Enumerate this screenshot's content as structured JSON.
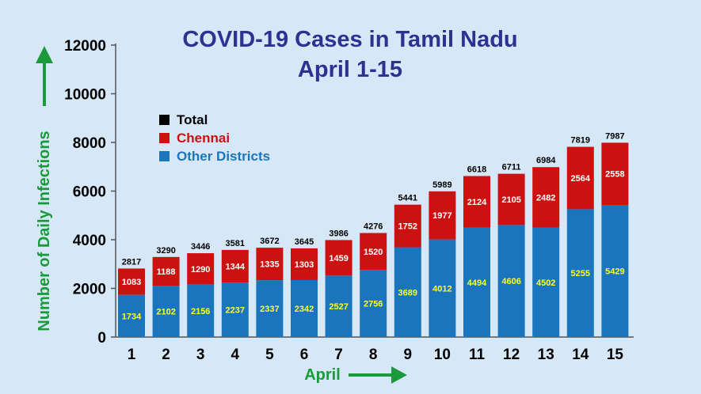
{
  "chart_data": {
    "type": "bar",
    "stacked": true,
    "title": "COVID-19 Cases in Tamil Nadu",
    "subtitle": "April 1-15",
    "xlabel": "April",
    "ylabel": "Number of Daily Infections",
    "ylim": [
      0,
      12000
    ],
    "yticks": [
      0,
      2000,
      4000,
      6000,
      8000,
      10000,
      12000
    ],
    "categories": [
      "1",
      "2",
      "3",
      "4",
      "5",
      "6",
      "7",
      "8",
      "9",
      "10",
      "11",
      "12",
      "13",
      "14",
      "15"
    ],
    "series": [
      {
        "name": "Other Districts",
        "color": "#1a75bc",
        "values": [
          1734,
          2102,
          2156,
          2237,
          2337,
          2342,
          2527,
          2756,
          3689,
          4012,
          4494,
          4606,
          4502,
          5255,
          5429
        ]
      },
      {
        "name": "Chennai",
        "color": "#cc1111",
        "values": [
          1083,
          1188,
          1290,
          1344,
          1335,
          1303,
          1459,
          1520,
          1752,
          1977,
          2124,
          2105,
          2482,
          2564,
          2558
        ]
      }
    ],
    "totals": [
      2817,
      3290,
      3446,
      3581,
      3672,
      3645,
      3986,
      4276,
      5441,
      5989,
      6618,
      6711,
      6984,
      7819,
      7987
    ],
    "legend": [
      {
        "label": "Total",
        "color": "#000000"
      },
      {
        "label": "Chennai",
        "color": "#cc1111"
      },
      {
        "label": "Other Districts",
        "color": "#1a75bc"
      }
    ],
    "legend_position": "top-left",
    "grid": false
  },
  "colors": {
    "background": "#d6e8f7",
    "title": "#2e3192",
    "axis_label": "#1a9a3a"
  }
}
